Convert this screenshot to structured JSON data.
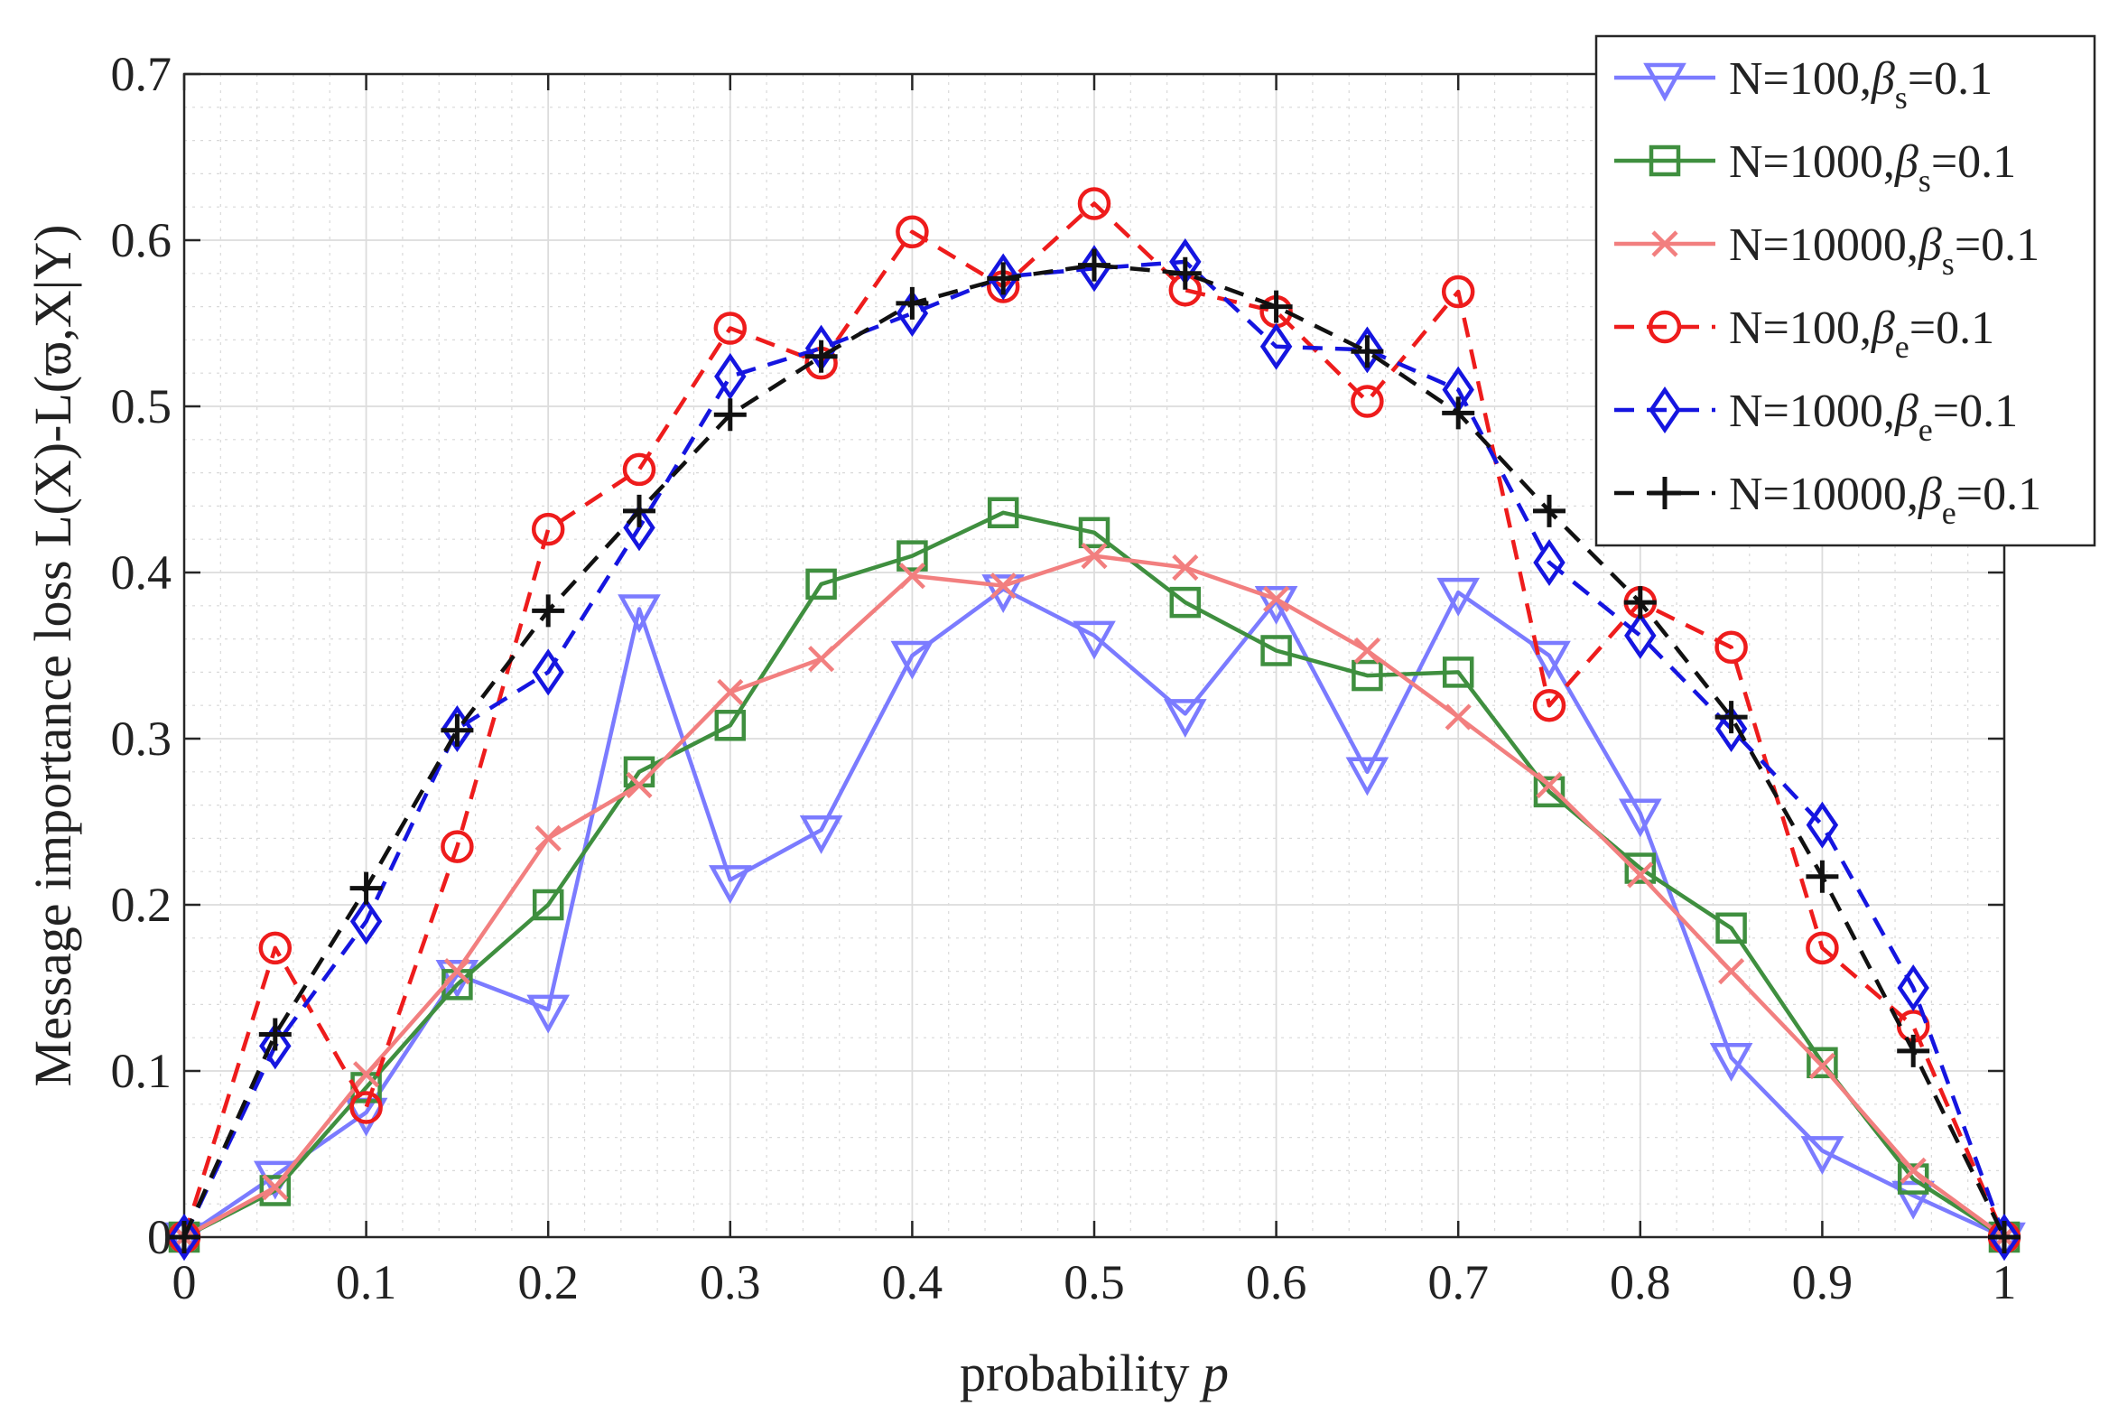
{
  "chart_data": {
    "type": "line",
    "xlabel": "probability",
    "xlabel_var": "p",
    "ylabel": "Message importance loss L(X)-L(ϖ,X|Y)",
    "xlim": [
      0,
      1
    ],
    "ylim": [
      0,
      0.7
    ],
    "x_ticks": [
      0,
      0.1,
      0.2,
      0.3,
      0.4,
      0.5,
      0.6,
      0.7,
      0.8,
      0.9,
      1
    ],
    "x_tick_labels": [
      "0",
      "0.1",
      "0.2",
      "0.3",
      "0.4",
      "0.5",
      "0.6",
      "0.7",
      "0.8",
      "0.9",
      "1"
    ],
    "y_ticks": [
      0,
      0.1,
      0.2,
      0.3,
      0.4,
      0.5,
      0.6,
      0.7
    ],
    "y_tick_labels": [
      "0",
      "0.1",
      "0.2",
      "0.3",
      "0.4",
      "0.5",
      "0.6",
      "0.7"
    ],
    "grid": true,
    "minor_grid": true,
    "legend_position": "top-right",
    "x": [
      0,
      0.05,
      0.1,
      0.15,
      0.2,
      0.25,
      0.3,
      0.35,
      0.4,
      0.45,
      0.5,
      0.55,
      0.6,
      0.65,
      0.7,
      0.75,
      0.8,
      0.85,
      0.9,
      0.95,
      1
    ],
    "series": [
      {
        "name": "N=100,βs=0.1",
        "label_main": "N=100,",
        "label_beta": "β",
        "label_sub": "s",
        "label_tail": "=0.1",
        "color": "#7b7bff",
        "dash": "solid",
        "marker": "triangle-down",
        "values": [
          0,
          0.037,
          0.075,
          0.158,
          0.137,
          0.378,
          0.215,
          0.245,
          0.35,
          0.39,
          0.362,
          0.315,
          0.383,
          0.28,
          0.388,
          0.35,
          0.255,
          0.108,
          0.052,
          0.025,
          0
        ]
      },
      {
        "name": "N=1000,βs=0.1",
        "label_main": "N=1000,",
        "label_beta": "β",
        "label_sub": "s",
        "label_tail": "=0.1",
        "color": "#3f8f3f",
        "dash": "solid",
        "marker": "square",
        "values": [
          0,
          0.028,
          0.09,
          0.152,
          0.2,
          0.28,
          0.308,
          0.393,
          0.41,
          0.436,
          0.424,
          0.382,
          0.353,
          0.338,
          0.34,
          0.268,
          0.222,
          0.186,
          0.105,
          0.035,
          0
        ]
      },
      {
        "name": "N=10000,βs=0.1",
        "label_main": "N=10000,",
        "label_beta": "β",
        "label_sub": "s",
        "label_tail": "=0.1",
        "color": "#f27f7f",
        "dash": "solid",
        "marker": "x",
        "values": [
          0,
          0.03,
          0.098,
          0.16,
          0.24,
          0.272,
          0.328,
          0.348,
          0.398,
          0.392,
          0.41,
          0.403,
          0.384,
          0.353,
          0.313,
          0.272,
          0.218,
          0.16,
          0.103,
          0.04,
          0
        ]
      },
      {
        "name": "N=100,βe=0.1",
        "label_main": "N=100,",
        "label_beta": "β",
        "label_sub": "e",
        "label_tail": "=0.1",
        "color": "#ee1c1c",
        "dash": "dashed",
        "marker": "circle",
        "values": [
          0,
          0.174,
          0.078,
          0.235,
          0.426,
          0.462,
          0.547,
          0.526,
          0.605,
          0.572,
          0.622,
          0.57,
          0.557,
          0.503,
          0.569,
          0.32,
          0.382,
          0.355,
          0.174,
          0.127,
          0
        ]
      },
      {
        "name": "N=1000,βe=0.1",
        "label_main": "N=1000,",
        "label_beta": "β",
        "label_sub": "e",
        "label_tail": "=0.1",
        "color": "#1515e0",
        "dash": "dashed",
        "marker": "diamond",
        "values": [
          0,
          0.115,
          0.19,
          0.306,
          0.34,
          0.427,
          0.518,
          0.535,
          0.556,
          0.578,
          0.583,
          0.587,
          0.536,
          0.534,
          0.51,
          0.406,
          0.362,
          0.306,
          0.248,
          0.15,
          0
        ]
      },
      {
        "name": "N=10000,βe=0.1",
        "label_main": "N=10000,",
        "label_beta": "β",
        "label_sub": "e",
        "label_tail": "=0.1",
        "color": "#111111",
        "dash": "dashed",
        "marker": "plus",
        "values": [
          0,
          0.122,
          0.21,
          0.305,
          0.377,
          0.437,
          0.495,
          0.53,
          0.562,
          0.577,
          0.585,
          0.58,
          0.56,
          0.533,
          0.496,
          0.437,
          0.382,
          0.313,
          0.217,
          0.112,
          0
        ]
      }
    ]
  }
}
